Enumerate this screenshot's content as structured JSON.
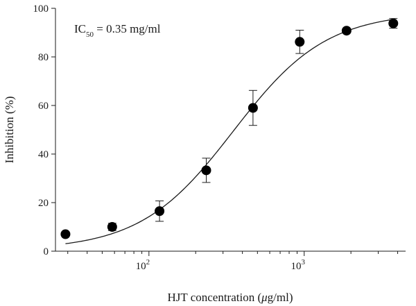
{
  "chart_data": {
    "type": "scatter",
    "title": "",
    "xlabel": "HJT concentration (μg/ml)",
    "xlabel_parts": {
      "before": "HJT concentration (",
      "italic": "μ",
      "after": "g/ml)"
    },
    "ylabel": "Inhibition (%)",
    "annotation": {
      "text": "IC50 = 0.35 mg/ml",
      "main": "IC",
      "sub": "50",
      "rest": " = 0.35 mg/ml",
      "position": "top-left"
    },
    "xscale": "log",
    "xlim": [
      25,
      4500
    ],
    "ylim": [
      0,
      100
    ],
    "yticks": [
      0,
      20,
      40,
      60,
      80,
      100
    ],
    "xticks_major": [
      {
        "value": 100,
        "base": "10",
        "exp": "2"
      },
      {
        "value": 1000,
        "base": "10",
        "exp": "3"
      }
    ],
    "xticks_minor": [
      30,
      40,
      50,
      60,
      70,
      80,
      90,
      200,
      300,
      400,
      500,
      600,
      700,
      800,
      900,
      2000,
      3000,
      4000
    ],
    "grid": false,
    "legend": "none",
    "series": [
      {
        "points": [
          {
            "x": 29,
            "y": 7.0,
            "err": 0
          },
          {
            "x": 58,
            "y": 10.0,
            "err": 1.5
          },
          {
            "x": 117,
            "y": 16.5,
            "err": 4.2
          },
          {
            "x": 234,
            "y": 33.3,
            "err": 5.0
          },
          {
            "x": 468,
            "y": 59.0,
            "err": 7.2
          },
          {
            "x": 936,
            "y": 86.2,
            "err": 4.8
          },
          {
            "x": 1875,
            "y": 90.8,
            "err": 0
          },
          {
            "x": 3750,
            "y": 93.8,
            "err": 2.0
          }
        ]
      }
    ],
    "fit": {
      "type": "sigmoid",
      "bottom": 0.5,
      "top": 98.5,
      "ic50": 350,
      "hill": 1.45,
      "x_range": [
        29,
        3750
      ]
    }
  }
}
